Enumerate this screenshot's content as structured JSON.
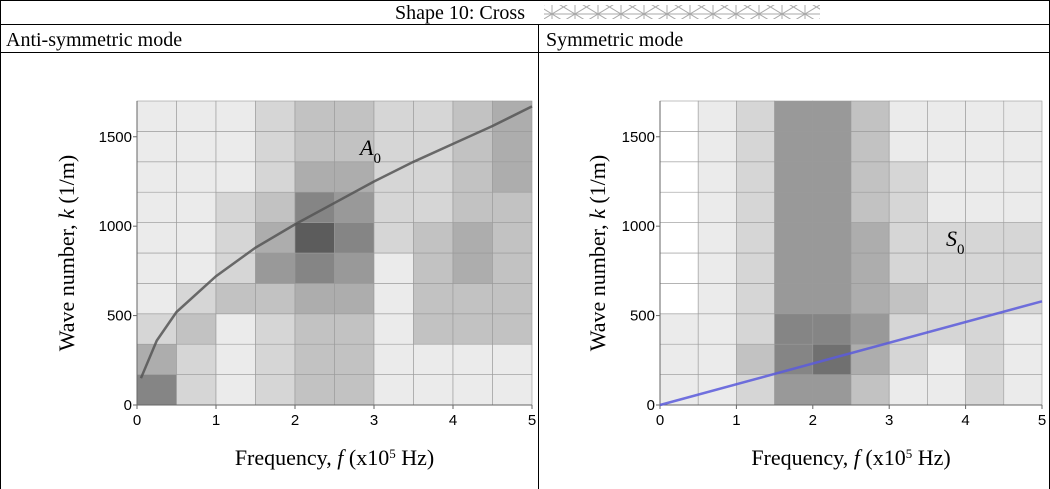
{
  "header": {
    "title": "Shape 10: Cross"
  },
  "columns": [
    "Anti-symmetric mode",
    "Symmetric mode"
  ],
  "chart_data": [
    {
      "type": "heatmap",
      "xlabel": [
        "Frequency, ",
        "f",
        " (x10",
        "5",
        " Hz)"
      ],
      "ylabel": [
        "Wave number, ",
        "k",
        " (1/m)"
      ],
      "annotation": [
        "A",
        "0"
      ],
      "xlim": [
        0,
        5
      ],
      "ylim": [
        0,
        1700
      ],
      "xticks": [
        0,
        1,
        2,
        3,
        4,
        5
      ],
      "yticks": [
        0,
        500,
        1000,
        1500
      ],
      "xbins": [
        0,
        0.5,
        1,
        1.5,
        2,
        2.5,
        3,
        3.5,
        4,
        4.5,
        5
      ],
      "ybins": [
        0,
        170,
        340,
        510,
        680,
        850,
        1020,
        1190,
        1360,
        1530,
        1700
      ],
      "z": [
        [
          0.6,
          0.2,
          0.1,
          0.2,
          0.3,
          0.3,
          0.1,
          0.1,
          0.1,
          0.1
        ],
        [
          0.4,
          0.2,
          0.1,
          0.2,
          0.3,
          0.3,
          0.1,
          0.1,
          0.1,
          0.1
        ],
        [
          0.2,
          0.3,
          0.1,
          0.2,
          0.3,
          0.3,
          0.1,
          0.3,
          0.3,
          0.3
        ],
        [
          0.1,
          0.2,
          0.3,
          0.3,
          0.4,
          0.4,
          0.1,
          0.3,
          0.3,
          0.3
        ],
        [
          0.1,
          0.1,
          0.2,
          0.5,
          0.6,
          0.5,
          0.1,
          0.3,
          0.4,
          0.3
        ],
        [
          0.1,
          0.1,
          0.2,
          0.4,
          0.8,
          0.6,
          0.2,
          0.3,
          0.4,
          0.3
        ],
        [
          0.1,
          0.1,
          0.2,
          0.3,
          0.6,
          0.5,
          0.2,
          0.2,
          0.3,
          0.3
        ],
        [
          0.1,
          0.1,
          0.1,
          0.2,
          0.4,
          0.4,
          0.2,
          0.2,
          0.3,
          0.4
        ],
        [
          0.1,
          0.1,
          0.1,
          0.2,
          0.3,
          0.3,
          0.2,
          0.2,
          0.3,
          0.4
        ],
        [
          0.1,
          0.1,
          0.1,
          0.2,
          0.3,
          0.3,
          0.2,
          0.2,
          0.3,
          0.4
        ]
      ],
      "curve": {
        "color": "#555555",
        "x": [
          0.05,
          0.25,
          0.5,
          1,
          1.5,
          2,
          2.5,
          3,
          3.5,
          4,
          4.5,
          5
        ],
        "values": [
          150,
          360,
          520,
          720,
          880,
          1010,
          1130,
          1250,
          1360,
          1460,
          1560,
          1670
        ]
      }
    },
    {
      "type": "heatmap",
      "xlabel": [
        "Frequency, ",
        "f",
        " (x10",
        "5",
        " Hz)"
      ],
      "ylabel": [
        "Wave number, ",
        "k",
        " (1/m)"
      ],
      "annotation": [
        "S",
        "0"
      ],
      "xlim": [
        0,
        5
      ],
      "ylim": [
        0,
        1700
      ],
      "xticks": [
        0,
        1,
        2,
        3,
        4,
        5
      ],
      "yticks": [
        0,
        500,
        1000,
        1500
      ],
      "xbins": [
        0,
        0.5,
        1,
        1.5,
        2,
        2.5,
        3,
        3.5,
        4,
        4.5,
        5
      ],
      "ybins": [
        0,
        170,
        340,
        510,
        680,
        850,
        1020,
        1190,
        1360,
        1530,
        1700
      ],
      "z": [
        [
          0.1,
          0.1,
          0.2,
          0.5,
          0.5,
          0.3,
          0.1,
          0.1,
          0.2,
          0.1
        ],
        [
          0.1,
          0.1,
          0.3,
          0.6,
          0.7,
          0.4,
          0.2,
          0.1,
          0.2,
          0.1
        ],
        [
          0.1,
          0.1,
          0.2,
          0.6,
          0.6,
          0.5,
          0.2,
          0.2,
          0.2,
          0.1
        ],
        [
          0.0,
          0.1,
          0.2,
          0.5,
          0.5,
          0.4,
          0.3,
          0.2,
          0.2,
          0.2
        ],
        [
          0.0,
          0.1,
          0.2,
          0.5,
          0.5,
          0.4,
          0.2,
          0.2,
          0.2,
          0.2
        ],
        [
          0.0,
          0.1,
          0.2,
          0.5,
          0.5,
          0.4,
          0.2,
          0.2,
          0.2,
          0.2
        ],
        [
          0.0,
          0.1,
          0.2,
          0.5,
          0.5,
          0.3,
          0.2,
          0.1,
          0.1,
          0.1
        ],
        [
          0.0,
          0.1,
          0.2,
          0.5,
          0.5,
          0.3,
          0.2,
          0.1,
          0.1,
          0.1
        ],
        [
          0.0,
          0.1,
          0.2,
          0.5,
          0.5,
          0.3,
          0.1,
          0.1,
          0.1,
          0.1
        ],
        [
          0.0,
          0.1,
          0.2,
          0.5,
          0.5,
          0.3,
          0.1,
          0.1,
          0.1,
          0.1
        ]
      ],
      "curve": {
        "color": "#5a5adc",
        "x": [
          0,
          5
        ],
        "values": [
          0,
          580
        ]
      }
    }
  ]
}
